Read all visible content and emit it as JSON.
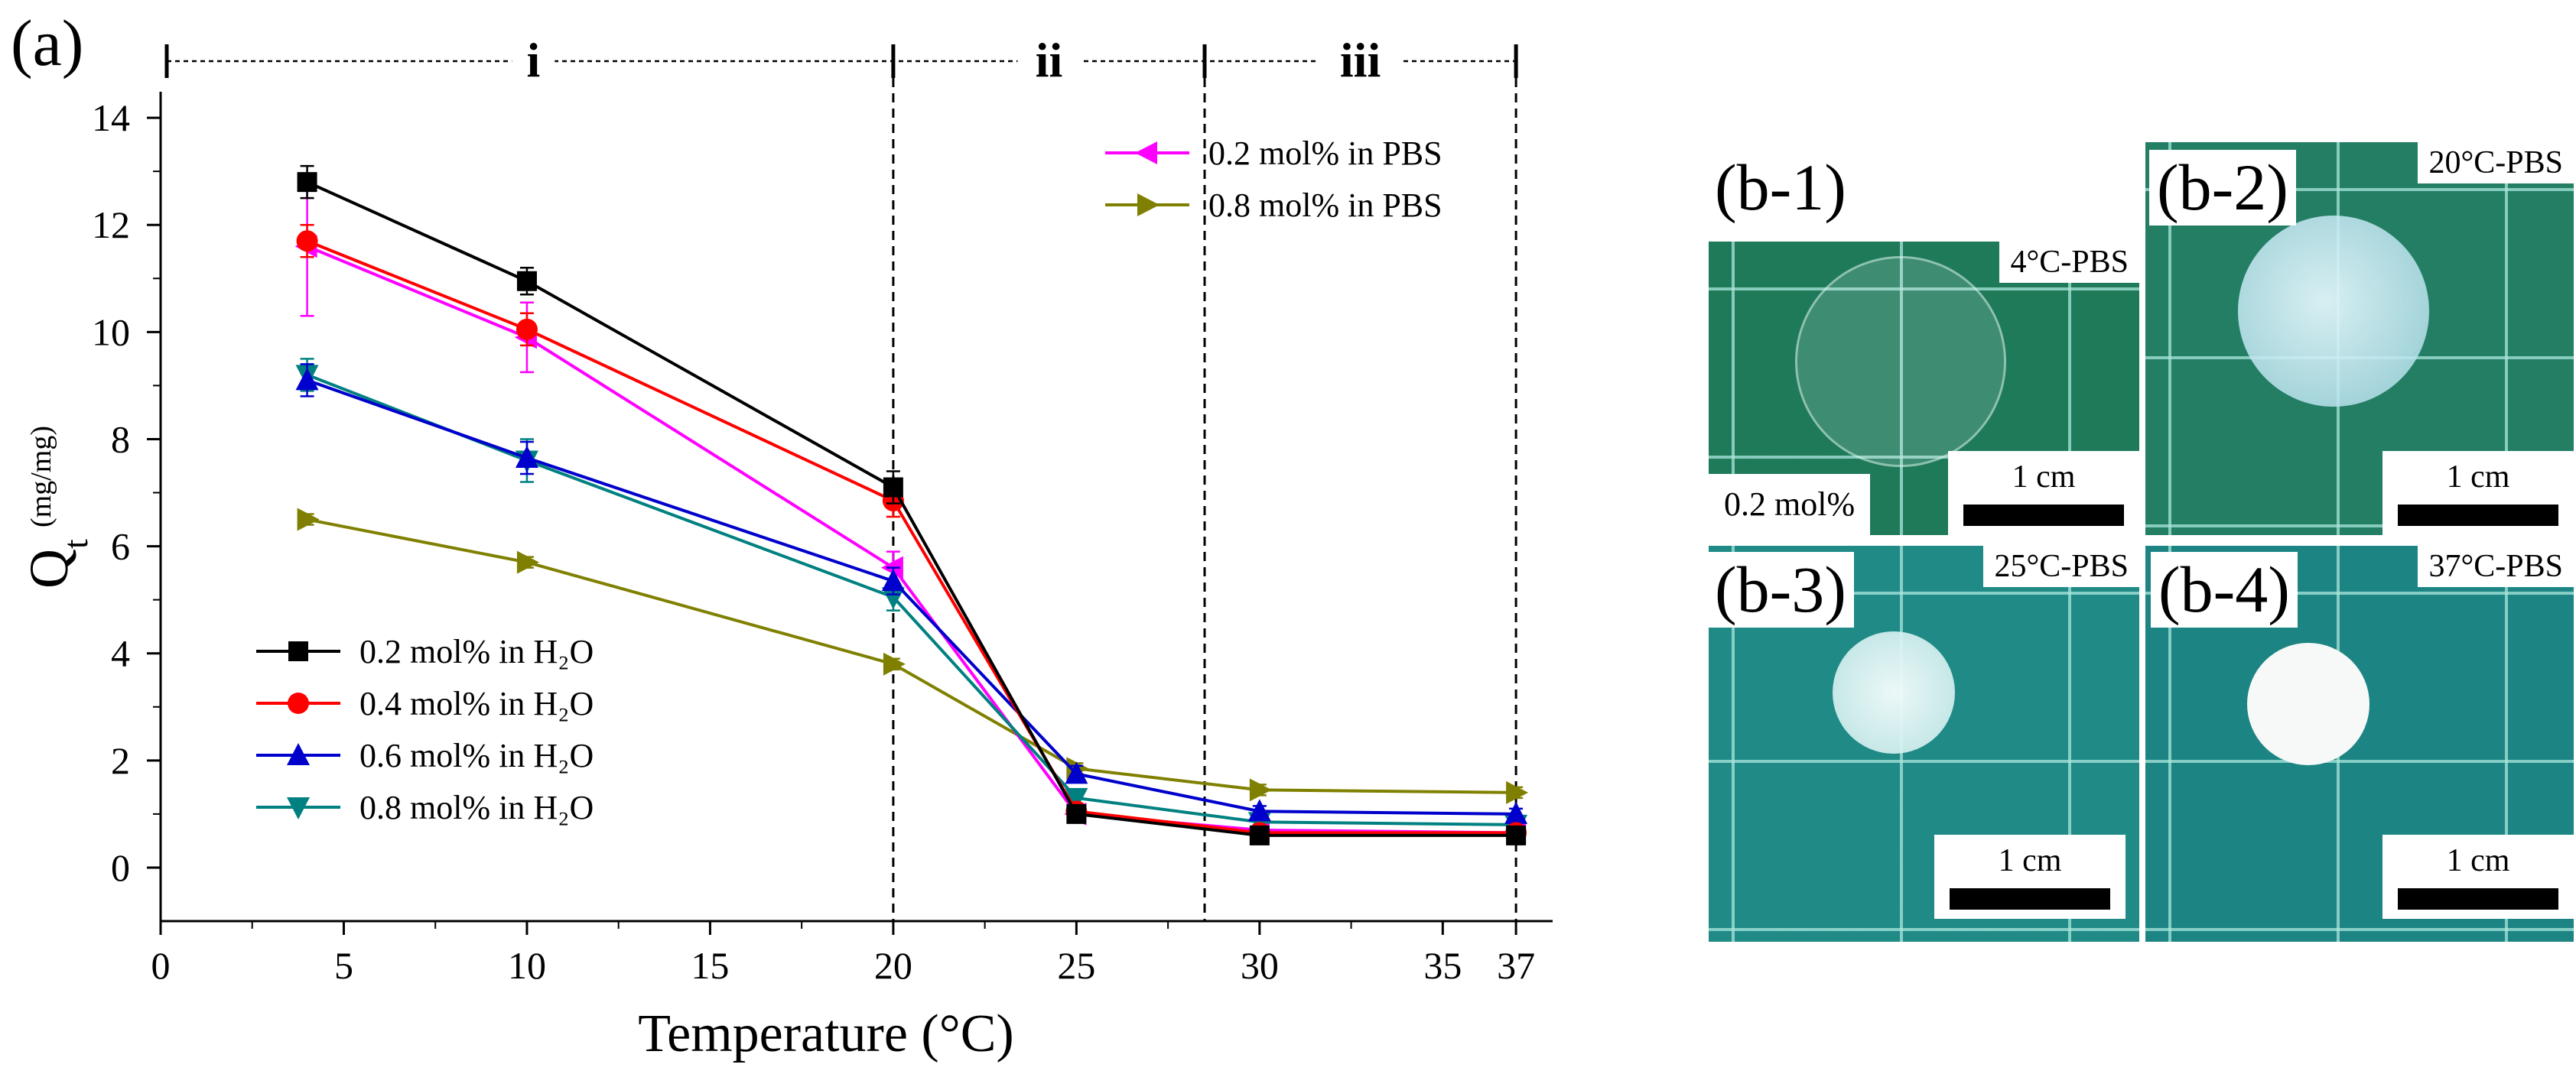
{
  "panel_a_label": "(a)",
  "chart_data": {
    "type": "line",
    "xlabel": "Temperature (°C)",
    "ylabel_main": "Q",
    "ylabel_sub": "t",
    "ylabel_unit": "(mg/mg)",
    "xlim": [
      0,
      38
    ],
    "ylim": [
      -1,
      15.2
    ],
    "xticks": [
      0,
      5,
      10,
      15,
      20,
      25,
      30,
      35,
      37
    ],
    "yticks": [
      0,
      2,
      4,
      6,
      8,
      10,
      12,
      14
    ],
    "regions": [
      {
        "label": "i",
        "from": 0,
        "to": 20
      },
      {
        "label": "ii",
        "from": 20,
        "to": 28.5
      },
      {
        "label": "iii",
        "from": 28.5,
        "to": 37
      }
    ],
    "region_dividers": [
      20,
      28.5,
      37
    ],
    "x": [
      4,
      10,
      20,
      25,
      30,
      37
    ],
    "series": [
      {
        "name": "0.2 mol% in H₂O",
        "color": "#000000",
        "marker": "square",
        "values": [
          12.8,
          10.95,
          7.1,
          1.0,
          0.6,
          0.6
        ],
        "errors": [
          0.3,
          0.25,
          0.3,
          0.15,
          0.1,
          0.1
        ]
      },
      {
        "name": "0.4 mol% in H₂O",
        "color": "#ff0000",
        "marker": "circle",
        "values": [
          11.7,
          10.05,
          6.85,
          1.05,
          0.65,
          0.65
        ],
        "errors": [
          0.3,
          0.3,
          0.3,
          0.15,
          0.1,
          0.1
        ]
      },
      {
        "name": "0.6 mol% in H₂O",
        "color": "#0000cc",
        "marker": "triangle-up",
        "values": [
          9.1,
          7.65,
          5.35,
          1.75,
          1.05,
          1.0
        ],
        "errors": [
          0.3,
          0.3,
          0.25,
          0.15,
          0.1,
          0.1
        ]
      },
      {
        "name": "0.8 mol% in H₂O",
        "color": "#008080",
        "marker": "triangle-down",
        "values": [
          9.2,
          7.6,
          5.05,
          1.3,
          0.85,
          0.8
        ],
        "errors": [
          0.3,
          0.4,
          0.25,
          0.15,
          0.1,
          0.1
        ]
      },
      {
        "name": "0.2 mol% in PBS",
        "color": "#ff00ff",
        "marker": "triangle-left",
        "values": [
          11.6,
          9.9,
          5.6,
          1.0,
          0.7,
          0.65
        ],
        "errors": [
          1.3,
          0.65,
          0.3,
          0.15,
          0.1,
          0.1
        ]
      },
      {
        "name": "0.8 mol% in PBS",
        "color": "#808000",
        "marker": "triangle-right",
        "values": [
          6.5,
          5.7,
          3.8,
          1.85,
          1.45,
          1.4
        ],
        "errors": [
          0.1,
          0.1,
          0.1,
          0.1,
          0.1,
          0.1
        ]
      }
    ],
    "legend_left": [
      "0.2 mol% in H₂O",
      "0.4 mol% in H₂O",
      "0.6 mol% in H₂O",
      "0.8 mol% in H₂O"
    ],
    "legend_right": [
      "0.2 mol% in PBS",
      "0.8 mol% in PBS"
    ]
  },
  "photos": [
    {
      "label": "(b-1)",
      "tag": "4°C-PBS",
      "scale": "1 cm",
      "extra": "0.2 mol%",
      "bg": "#1f7a5a",
      "disc": "clear"
    },
    {
      "label": "(b-2)",
      "tag": "20°C-PBS",
      "scale": "1 cm",
      "extra": "",
      "bg": "#237e64",
      "disc": "translucent"
    },
    {
      "label": "(b-3)",
      "tag": "25°C-PBS",
      "scale": "1 cm",
      "extra": "",
      "bg": "#1f8a86",
      "disc": "cloudy"
    },
    {
      "label": "(b-4)",
      "tag": "37°C-PBS",
      "scale": "1 cm",
      "extra": "",
      "bg": "#1c8584",
      "disc": "opaque"
    }
  ]
}
